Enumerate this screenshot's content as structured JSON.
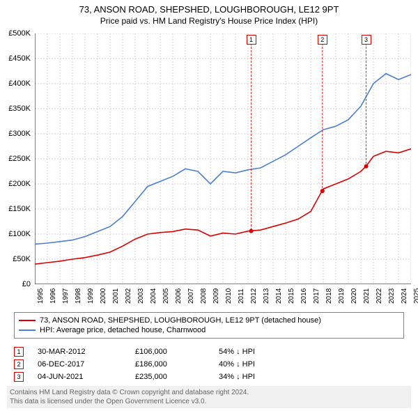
{
  "title": {
    "line1": "73, ANSON ROAD, SHEPSHED, LOUGHBOROUGH, LE12 9PT",
    "line2": "Price paid vs. HM Land Registry's House Price Index (HPI)",
    "fontsize1": 13,
    "fontsize2": 12
  },
  "chart": {
    "type": "line",
    "background_color": "#ffffff",
    "grid_color": "#aaaaaa",
    "axis_color": "#000000",
    "ylim": [
      0,
      500000
    ],
    "ytick_step": 50000,
    "yticks": [
      "£0",
      "£50K",
      "£100K",
      "£150K",
      "£200K",
      "£250K",
      "£300K",
      "£350K",
      "£400K",
      "£450K",
      "£500K"
    ],
    "xlim": [
      1995,
      2025
    ],
    "xticks": [
      "1995",
      "1996",
      "1997",
      "1998",
      "1999",
      "2000",
      "2001",
      "2002",
      "2003",
      "2004",
      "2005",
      "2006",
      "2007",
      "2008",
      "2009",
      "2010",
      "2011",
      "2012",
      "2013",
      "2014",
      "2015",
      "2016",
      "2017",
      "2018",
      "2019",
      "2020",
      "2021",
      "2022",
      "2023",
      "2024",
      "2025"
    ],
    "series": [
      {
        "name": "property",
        "color": "#dc0000",
        "line_width": 1.6,
        "points": [
          [
            1995,
            40000
          ],
          [
            1996,
            43000
          ],
          [
            1997,
            46000
          ],
          [
            1998,
            50000
          ],
          [
            1999,
            53000
          ],
          [
            2000,
            58000
          ],
          [
            2001,
            64000
          ],
          [
            2002,
            76000
          ],
          [
            2003,
            90000
          ],
          [
            2004,
            100000
          ],
          [
            2005,
            103000
          ],
          [
            2006,
            105000
          ],
          [
            2007,
            110000
          ],
          [
            2008,
            108000
          ],
          [
            2009,
            96000
          ],
          [
            2010,
            102000
          ],
          [
            2011,
            100000
          ],
          [
            2012,
            106000
          ],
          [
            2013,
            108000
          ],
          [
            2014,
            115000
          ],
          [
            2015,
            122000
          ],
          [
            2016,
            130000
          ],
          [
            2017,
            145000
          ],
          [
            2017.9,
            186000
          ],
          [
            2018,
            190000
          ],
          [
            2019,
            200000
          ],
          [
            2020,
            210000
          ],
          [
            2021,
            225000
          ],
          [
            2021.4,
            235000
          ],
          [
            2022,
            255000
          ],
          [
            2023,
            265000
          ],
          [
            2024,
            262000
          ],
          [
            2025,
            270000
          ]
        ]
      },
      {
        "name": "hpi",
        "color": "#4a7fd6",
        "line_width": 1.6,
        "points": [
          [
            1995,
            80000
          ],
          [
            1996,
            82000
          ],
          [
            1997,
            85000
          ],
          [
            1998,
            88000
          ],
          [
            1999,
            95000
          ],
          [
            2000,
            105000
          ],
          [
            2001,
            115000
          ],
          [
            2002,
            135000
          ],
          [
            2003,
            165000
          ],
          [
            2004,
            195000
          ],
          [
            2005,
            205000
          ],
          [
            2006,
            215000
          ],
          [
            2007,
            230000
          ],
          [
            2008,
            225000
          ],
          [
            2009,
            200000
          ],
          [
            2010,
            225000
          ],
          [
            2011,
            222000
          ],
          [
            2012,
            228000
          ],
          [
            2013,
            232000
          ],
          [
            2014,
            245000
          ],
          [
            2015,
            258000
          ],
          [
            2016,
            275000
          ],
          [
            2017,
            292000
          ],
          [
            2018,
            308000
          ],
          [
            2019,
            315000
          ],
          [
            2020,
            328000
          ],
          [
            2021,
            355000
          ],
          [
            2022,
            400000
          ],
          [
            2023,
            420000
          ],
          [
            2024,
            408000
          ],
          [
            2025,
            418000
          ]
        ]
      }
    ],
    "sale_markers": [
      {
        "num": "1",
        "year": 2012.25,
        "price": 106000,
        "color": "#dc0000"
      },
      {
        "num": "2",
        "year": 2017.93,
        "price": 186000,
        "color": "#dc0000"
      },
      {
        "num": "3",
        "year": 2021.42,
        "price": 235000,
        "color": "#dc0000"
      }
    ],
    "marker_box_y_offset": -12,
    "point_marker_radius": 3
  },
  "legend": {
    "border_color": "#808080",
    "rows": [
      {
        "color": "#dc0000",
        "label": "73, ANSON ROAD, SHEPSHED, LOUGHBOROUGH, LE12 9PT (detached house)"
      },
      {
        "color": "#4a7fd6",
        "label": "HPI: Average price, detached house, Charnwood"
      }
    ]
  },
  "data_rows": [
    {
      "num": "1",
      "color": "#dc0000",
      "date": "30-MAR-2012",
      "price": "£106,000",
      "diff": "54% ↓ HPI"
    },
    {
      "num": "2",
      "color": "#dc0000",
      "date": "06-DEC-2017",
      "price": "£186,000",
      "diff": "40% ↓ HPI"
    },
    {
      "num": "3",
      "color": "#dc0000",
      "date": "04-JUN-2021",
      "price": "£235,000",
      "diff": "34% ↓ HPI"
    }
  ],
  "footer": {
    "line1": "Contains HM Land Registry data © Crown copyright and database right 2024.",
    "line2": "This data is licensed under the Open Government Licence v3.0.",
    "color": "#666666",
    "background": "#f0f0f0"
  }
}
